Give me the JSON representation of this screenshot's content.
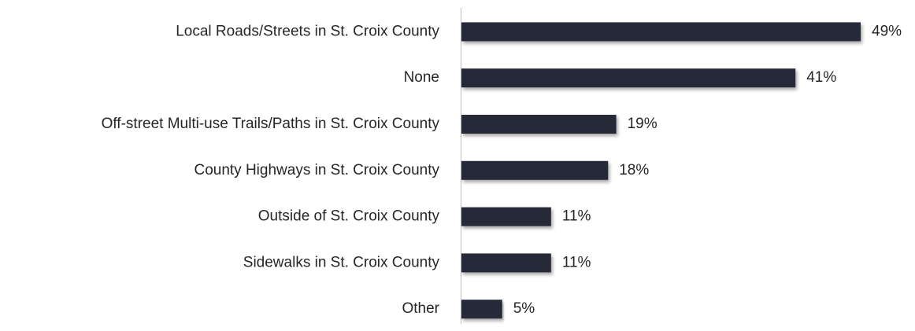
{
  "chart_data": {
    "type": "bar",
    "orientation": "horizontal",
    "categories": [
      "Local Roads/Streets in St. Croix County",
      "None",
      "Off-street Multi-use Trails/Paths in St. Croix County",
      "County Highways in St. Croix County",
      "Outside of St. Croix County",
      "Sidewalks in St. Croix County",
      "Other"
    ],
    "values": [
      49,
      41,
      19,
      18,
      11,
      11,
      5
    ],
    "value_labels": [
      "49%",
      "41%",
      "19%",
      "18%",
      "11%",
      "11%",
      "5%"
    ],
    "color": "#262c37"
  }
}
